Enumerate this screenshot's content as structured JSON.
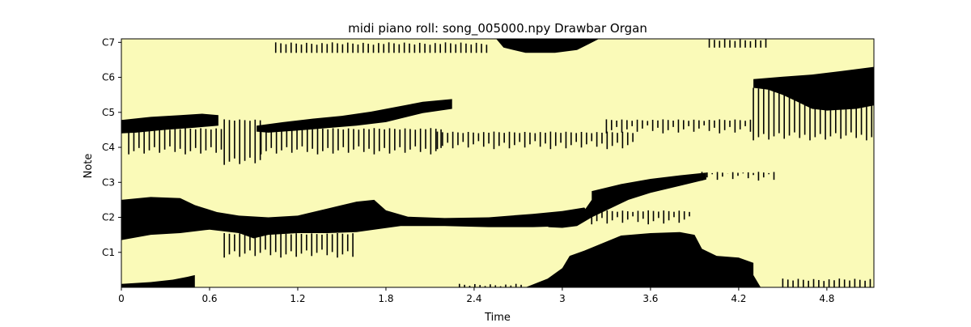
{
  "chart_data": {
    "type": "heatmap",
    "title": "midi piano roll: song_005000.npy Drawbar Organ",
    "xlabel": "Time",
    "ylabel": "Note",
    "xlim": [
      0,
      5.12
    ],
    "x_ticks": [
      0,
      0.6,
      1.2,
      1.8,
      2.4,
      3,
      3.6,
      4.2,
      4.8
    ],
    "x_tick_labels": [
      "0",
      "0.6",
      "1.2",
      "1.8",
      "2.4",
      "3",
      "3.6",
      "4.2",
      "4.8"
    ],
    "y_ticks": [
      "C1",
      "C2",
      "C3",
      "C4",
      "C5",
      "C6",
      "C7"
    ],
    "colors": {
      "background": "#fafab8",
      "note": "#000000"
    },
    "note_regions": [
      {
        "name": "upper-voice-a",
        "points": [
          [
            0.0,
            4.78
          ],
          [
            0.2,
            4.87
          ],
          [
            0.4,
            4.92
          ],
          [
            0.55,
            4.96
          ],
          [
            0.66,
            4.92
          ],
          [
            0.66,
            4.62
          ],
          [
            0.5,
            4.56
          ],
          [
            0.3,
            4.5
          ],
          [
            0.1,
            4.42
          ],
          [
            0.0,
            4.4
          ]
        ]
      },
      {
        "name": "upper-voice-b",
        "points": [
          [
            0.92,
            4.62
          ],
          [
            1.1,
            4.72
          ],
          [
            1.3,
            4.82
          ],
          [
            1.5,
            4.9
          ],
          [
            1.7,
            5.02
          ],
          [
            1.9,
            5.18
          ],
          [
            2.05,
            5.3
          ],
          [
            2.25,
            5.38
          ],
          [
            2.25,
            5.1
          ],
          [
            2.05,
            4.98
          ],
          [
            1.8,
            4.72
          ],
          [
            1.6,
            4.62
          ],
          [
            1.4,
            4.55
          ],
          [
            1.2,
            4.48
          ],
          [
            1.0,
            4.42
          ],
          [
            0.92,
            4.45
          ]
        ]
      },
      {
        "name": "top-voice",
        "points": [
          [
            2.55,
            7.1
          ],
          [
            2.6,
            6.85
          ],
          [
            2.75,
            6.7
          ],
          [
            2.95,
            6.7
          ],
          [
            3.1,
            6.78
          ],
          [
            3.18,
            6.95
          ],
          [
            3.25,
            7.1
          ]
        ]
      },
      {
        "name": "right-upper-voice",
        "points": [
          [
            4.3,
            5.95
          ],
          [
            4.5,
            6.02
          ],
          [
            4.7,
            6.08
          ],
          [
            4.9,
            6.18
          ],
          [
            5.12,
            6.3
          ],
          [
            5.12,
            5.2
          ],
          [
            5.0,
            5.1
          ],
          [
            4.8,
            5.05
          ],
          [
            4.7,
            5.1
          ],
          [
            4.6,
            5.3
          ],
          [
            4.5,
            5.5
          ],
          [
            4.4,
            5.65
          ],
          [
            4.3,
            5.7
          ]
        ]
      },
      {
        "name": "mid-voice",
        "points": [
          [
            3.2,
            2.75
          ],
          [
            3.4,
            2.95
          ],
          [
            3.6,
            3.1
          ],
          [
            3.8,
            3.2
          ],
          [
            3.98,
            3.28
          ],
          [
            3.98,
            3.08
          ],
          [
            3.8,
            2.9
          ],
          [
            3.6,
            2.7
          ],
          [
            3.45,
            2.5
          ],
          [
            3.3,
            2.2
          ],
          [
            3.2,
            2.0
          ],
          [
            3.1,
            1.75
          ],
          [
            3.0,
            1.7
          ],
          [
            2.9,
            1.72
          ],
          [
            3.05,
            1.95
          ],
          [
            3.15,
            2.2
          ],
          [
            3.2,
            2.5
          ]
        ]
      },
      {
        "name": "bass-voice",
        "points": [
          [
            0.0,
            2.5
          ],
          [
            0.2,
            2.58
          ],
          [
            0.4,
            2.55
          ],
          [
            0.5,
            2.35
          ],
          [
            0.65,
            2.15
          ],
          [
            0.8,
            2.05
          ],
          [
            1.0,
            2.0
          ],
          [
            1.2,
            2.05
          ],
          [
            1.4,
            2.25
          ],
          [
            1.6,
            2.45
          ],
          [
            1.72,
            2.5
          ],
          [
            1.8,
            2.2
          ],
          [
            1.95,
            2.02
          ],
          [
            2.2,
            1.98
          ],
          [
            2.5,
            2.0
          ],
          [
            2.8,
            2.1
          ],
          [
            3.0,
            2.18
          ],
          [
            3.15,
            2.28
          ],
          [
            3.2,
            2.0
          ],
          [
            3.05,
            1.75
          ],
          [
            2.8,
            1.72
          ],
          [
            2.5,
            1.72
          ],
          [
            2.2,
            1.75
          ],
          [
            1.9,
            1.75
          ],
          [
            1.6,
            1.58
          ],
          [
            1.4,
            1.55
          ],
          [
            1.2,
            1.55
          ],
          [
            1.0,
            1.5
          ],
          [
            0.9,
            1.4
          ],
          [
            0.8,
            1.55
          ],
          [
            0.6,
            1.65
          ],
          [
            0.4,
            1.55
          ],
          [
            0.2,
            1.5
          ],
          [
            0.0,
            1.35
          ]
        ]
      },
      {
        "name": "low-voice-left",
        "points": [
          [
            0.0,
            0.0
          ],
          [
            0.0,
            0.1
          ],
          [
            0.2,
            0.15
          ],
          [
            0.35,
            0.22
          ],
          [
            0.45,
            0.3
          ],
          [
            0.5,
            0.35
          ],
          [
            0.5,
            0.0
          ]
        ]
      },
      {
        "name": "low-voice-center",
        "points": [
          [
            2.75,
            0.0
          ],
          [
            2.9,
            0.25
          ],
          [
            3.0,
            0.55
          ],
          [
            3.05,
            0.9
          ],
          [
            3.15,
            1.05
          ],
          [
            3.4,
            1.48
          ],
          [
            3.6,
            1.55
          ],
          [
            3.8,
            1.58
          ],
          [
            3.9,
            1.5
          ],
          [
            3.95,
            1.1
          ],
          [
            4.05,
            0.9
          ],
          [
            4.2,
            0.85
          ],
          [
            4.3,
            0.7
          ],
          [
            4.3,
            0.35
          ],
          [
            4.35,
            0.0
          ]
        ]
      }
    ],
    "stripe_regions": [
      {
        "name": "stripes-1",
        "x": [
          0.05,
          0.7
        ],
        "top": 4.55,
        "bottom": 3.8,
        "spacing": 0.035
      },
      {
        "name": "stripes-2",
        "x": [
          0.7,
          0.95
        ],
        "top": 4.8,
        "bottom": 3.5,
        "spacing": 0.035
      },
      {
        "name": "stripes-3",
        "x": [
          0.95,
          2.2
        ],
        "top": 4.55,
        "bottom": 3.8,
        "spacing": 0.035
      },
      {
        "name": "stripes-4",
        "x": [
          1.05,
          2.5
        ],
        "top": 6.7,
        "bottom": 7.0,
        "spacing": 0.035
      },
      {
        "name": "stripes-5",
        "x": [
          2.15,
          3.5
        ],
        "top": 4.45,
        "bottom": 3.95,
        "spacing": 0.035
      },
      {
        "name": "stripes-6",
        "x": [
          3.3,
          4.3
        ],
        "top": 4.8,
        "bottom": 4.4,
        "spacing": 0.035
      },
      {
        "name": "stripes-7",
        "x": [
          4.3,
          5.12
        ],
        "top": 5.7,
        "bottom": 4.2,
        "spacing": 0.035
      },
      {
        "name": "stripes-8",
        "x": [
          4.0,
          4.4
        ],
        "top": 6.85,
        "bottom": 7.1,
        "spacing": 0.035
      },
      {
        "name": "stripes-9",
        "x": [
          0.7,
          1.6
        ],
        "top": 1.55,
        "bottom": 0.85,
        "spacing": 0.035
      },
      {
        "name": "stripes-10",
        "x": [
          3.2,
          3.9
        ],
        "top": 2.2,
        "bottom": 1.8,
        "spacing": 0.035
      },
      {
        "name": "stripes-11",
        "x": [
          3.95,
          4.45
        ],
        "top": 3.3,
        "bottom": 3.05,
        "spacing": 0.035
      },
      {
        "name": "stripes-12",
        "x": [
          4.5,
          5.12
        ],
        "top": 0.0,
        "bottom": 0.25,
        "spacing": 0.035
      },
      {
        "name": "stripes-13",
        "x": [
          2.3,
          2.75
        ],
        "top": 0.0,
        "bottom": 0.1,
        "spacing": 0.035
      }
    ]
  }
}
